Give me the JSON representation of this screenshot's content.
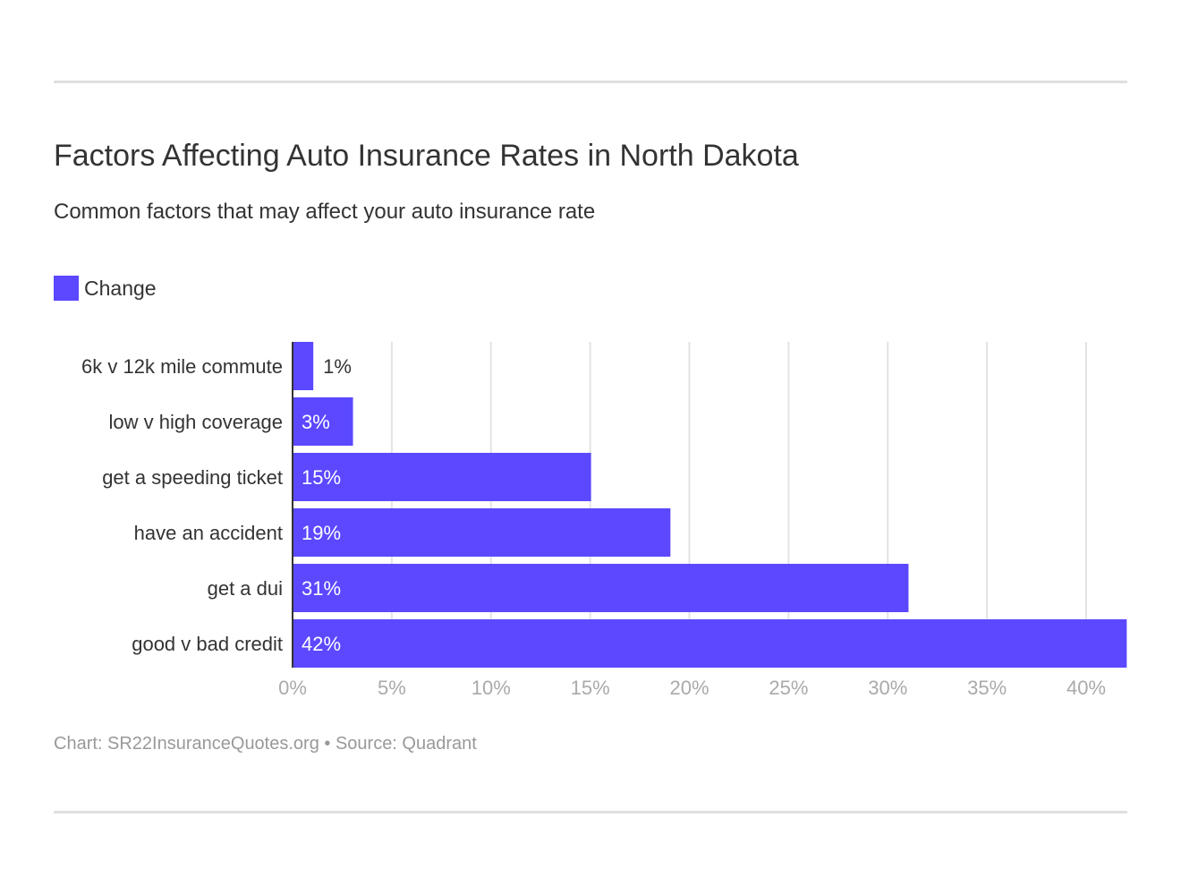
{
  "title": "Factors Affecting Auto Insurance Rates in North Dakota",
  "subtitle": "Common factors that may affect your auto insurance rate",
  "footer": "Chart: SR22InsuranceQuotes.org • Source: Quadrant",
  "chart_data": {
    "type": "bar",
    "orientation": "horizontal",
    "categories": [
      "6k v 12k mile commute",
      "low v high coverage",
      "get a speeding ticket",
      "have an accident",
      "get a dui",
      "good v bad credit"
    ],
    "series": [
      {
        "name": "Change",
        "values": [
          1,
          3,
          15,
          19,
          31,
          42
        ],
        "color": "#5b48ff"
      }
    ],
    "data_labels": [
      "1%",
      "3%",
      "15%",
      "19%",
      "31%",
      "42%"
    ],
    "xlim": [
      0,
      42
    ],
    "x_ticks": [
      0,
      5,
      10,
      15,
      20,
      25,
      30,
      35,
      40
    ],
    "x_tick_labels": [
      "0%",
      "5%",
      "10%",
      "15%",
      "20%",
      "25%",
      "30%",
      "35%",
      "40%"
    ],
    "grid": true,
    "legend": "top-left"
  }
}
